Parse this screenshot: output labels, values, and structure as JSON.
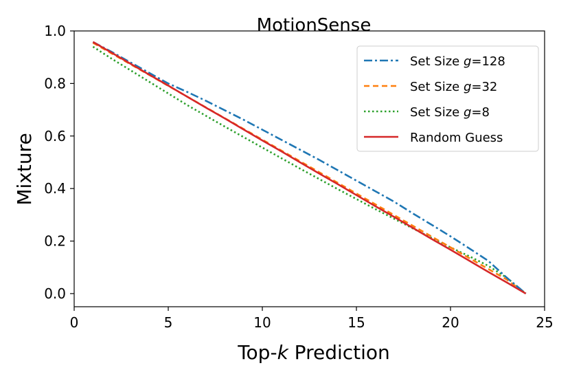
{
  "chart_data": {
    "type": "line",
    "title": "MotionSense",
    "xlabel_prefix": "Top-",
    "xlabel_var": "k",
    "xlabel_suffix": " Prediction",
    "ylabel": "Mixture",
    "xlim": [
      0,
      25
    ],
    "ylim": [
      -0.05,
      1.0
    ],
    "xticks": [
      0,
      5,
      10,
      15,
      20,
      25
    ],
    "yticks": [
      0.0,
      0.2,
      0.4,
      0.6,
      0.8,
      1.0
    ],
    "xtick_labels": [
      "0",
      "5",
      "10",
      "15",
      "20",
      "25"
    ],
    "ytick_labels": [
      "0.0",
      "0.2",
      "0.4",
      "0.6",
      "0.8",
      "1.0"
    ],
    "grid": false,
    "legend_position": "top-right",
    "x": [
      1,
      2,
      3,
      4,
      5,
      6,
      7,
      8,
      9,
      10,
      11,
      12,
      13,
      14,
      15,
      16,
      17,
      18,
      19,
      20,
      21,
      22,
      23,
      24
    ],
    "series": [
      {
        "legend_prefix": "Set Size ",
        "legend_var": "g",
        "legend_suffix": "=128",
        "color": "#1f77b4",
        "dash": "12,4,3,4",
        "values": [
          0.958,
          0.92,
          0.88,
          0.84,
          0.8,
          0.768,
          0.734,
          0.698,
          0.662,
          0.624,
          0.586,
          0.548,
          0.51,
          0.47,
          0.43,
          0.39,
          0.35,
          0.305,
          0.262,
          0.218,
          0.172,
          0.125,
          0.06,
          0.0
        ]
      },
      {
        "legend_prefix": "Set Size ",
        "legend_var": "g",
        "legend_suffix": "=32",
        "color": "#ff7f0e",
        "dash": "8,5",
        "values": [
          0.955,
          0.914,
          0.873,
          0.832,
          0.791,
          0.75,
          0.709,
          0.668,
          0.627,
          0.586,
          0.545,
          0.504,
          0.463,
          0.422,
          0.381,
          0.34,
          0.299,
          0.258,
          0.217,
          0.176,
          0.135,
          0.094,
          0.053,
          0.0
        ]
      },
      {
        "legend_prefix": "Set Size ",
        "legend_var": "g",
        "legend_suffix": "=8",
        "color": "#2ca02c",
        "dash": "2.5,3.5",
        "values": [
          0.94,
          0.894,
          0.85,
          0.806,
          0.762,
          0.718,
          0.677,
          0.636,
          0.596,
          0.556,
          0.516,
          0.476,
          0.437,
          0.398,
          0.36,
          0.322,
          0.285,
          0.248,
          0.212,
          0.176,
          0.142,
          0.106,
          0.06,
          0.0
        ]
      },
      {
        "legend_prefix": "Random Guess",
        "legend_var": "",
        "legend_suffix": "",
        "color": "#d62728",
        "dash": "",
        "values": [
          0.958,
          0.917,
          0.875,
          0.833,
          0.792,
          0.75,
          0.708,
          0.667,
          0.625,
          0.583,
          0.542,
          0.5,
          0.458,
          0.417,
          0.375,
          0.333,
          0.292,
          0.25,
          0.208,
          0.167,
          0.125,
          0.083,
          0.042,
          0.0
        ]
      }
    ]
  }
}
